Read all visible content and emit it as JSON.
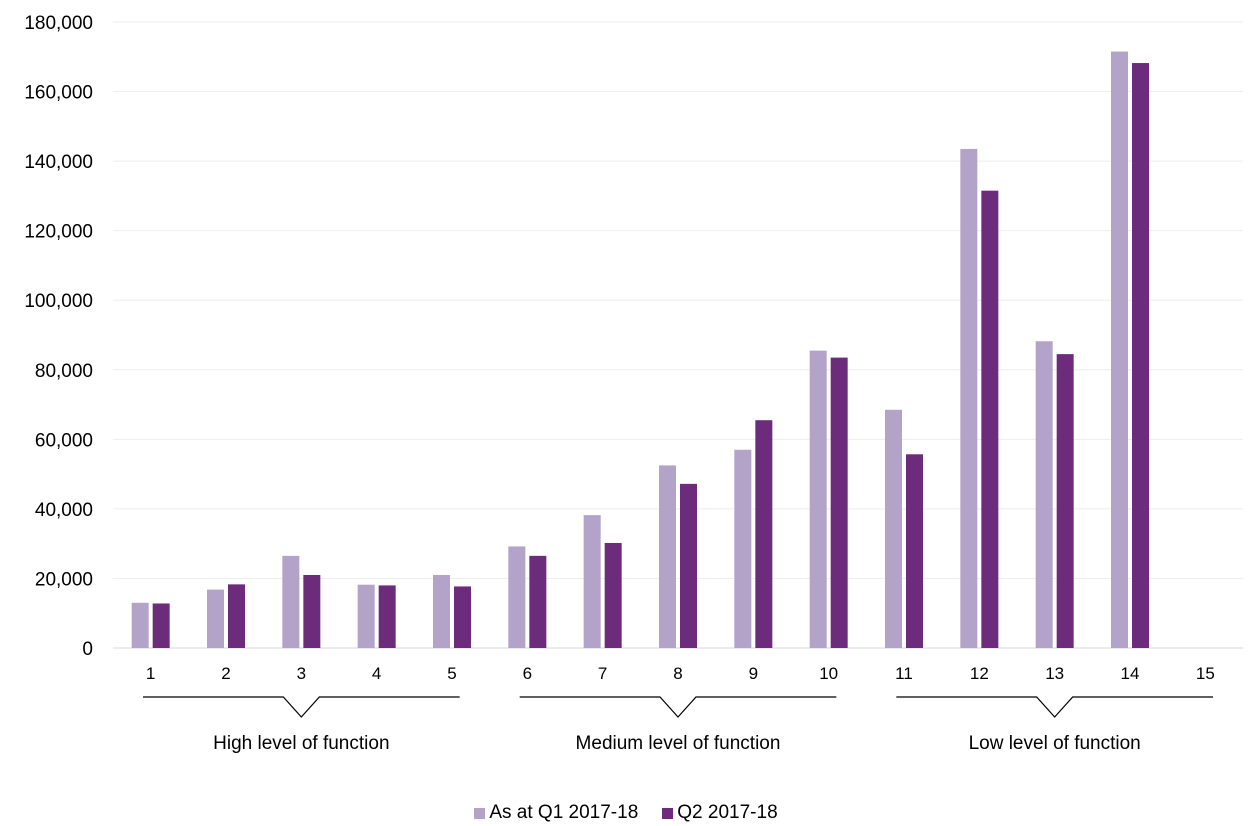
{
  "chart_data": {
    "type": "bar",
    "categories": [
      "1",
      "2",
      "3",
      "4",
      "5",
      "6",
      "7",
      "8",
      "9",
      "10",
      "11",
      "12",
      "13",
      "14",
      "15"
    ],
    "series": [
      {
        "name": "As at Q1 2017-18",
        "color": "#b3a3c9",
        "values": [
          13000,
          16800,
          26500,
          18200,
          21000,
          29200,
          38200,
          52500,
          57000,
          85500,
          68500,
          143500,
          88200,
          171500,
          0
        ]
      },
      {
        "name": "Q2 2017-18",
        "color": "#6c2c7b",
        "values": [
          12800,
          18300,
          21000,
          18000,
          17700,
          26500,
          30200,
          47200,
          65500,
          83500,
          55700,
          131500,
          84500,
          168200,
          0
        ]
      }
    ],
    "ylim": [
      0,
      180000
    ],
    "yticks": [
      0,
      20000,
      40000,
      60000,
      80000,
      100000,
      120000,
      140000,
      160000,
      180000
    ],
    "ytick_labels": [
      "0",
      "20,000",
      "40,000",
      "60,000",
      "80,000",
      "100,000",
      "120,000",
      "140,000",
      "160,000",
      "180,000"
    ],
    "groups": [
      {
        "label": "High level of function",
        "from": 1,
        "to": 5
      },
      {
        "label": "Medium level of function",
        "from": 6,
        "to": 10
      },
      {
        "label": "Low level of function",
        "from": 11,
        "to": 15
      }
    ],
    "grid": true,
    "legend_position": "bottom"
  }
}
